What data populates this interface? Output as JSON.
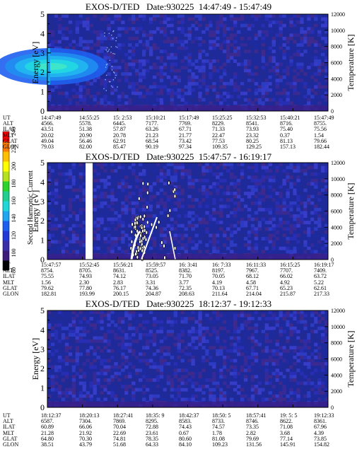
{
  "colors": {
    "background_field": "#1e2a9a",
    "low": "#3b1f8a",
    "colorbar": [
      "#000000",
      "#3b1c7a",
      "#3a2ea8",
      "#2438d8",
      "#1f5ff0",
      "#1fa6f0",
      "#21d8d8",
      "#21d090",
      "#2ad42a",
      "#b5e21c",
      "#ffff00",
      "#ffc000",
      "#ff7a00",
      "#ff0000"
    ]
  },
  "colorbar": {
    "title": "Second Harmonic Current",
    "ticks": [
      "80",
      "100",
      "120",
      "140",
      "160",
      "180",
      "200",
      "220",
      "240"
    ]
  },
  "table_row_labels": [
    "UT",
    "ALT",
    "ILAT",
    "MLT",
    "GLAT",
    "GLON"
  ],
  "chart_data": [
    {
      "type": "heatmap",
      "title": "EXOS-D/TED   Date:930225  14:47:49 - 15:47:49",
      "ylabel": "Energy [eV]",
      "y2label": "Temperature [K]",
      "yticks": [
        "0",
        "1",
        "2",
        "3",
        "4",
        "5"
      ],
      "ylim": [
        0,
        5
      ],
      "y2ticks": [
        "0",
        "2000",
        "4000",
        "6000",
        "8000",
        "10000",
        "12000"
      ],
      "y2lim": [
        0,
        12000
      ],
      "features": "bright cyan/green enhancement between about 1.5 and 3 eV during the first part of the interval",
      "table": [
        [
          "14:47:49",
          "14:55:25",
          "15: 2:53",
          "15:10:21",
          "15:17:49",
          "15:25:25",
          "15:32:53",
          "15:40:21",
          "15:47:49"
        ],
        [
          "4566.",
          "5578.",
          "6445.",
          "7177.",
          "7769.",
          "8229.",
          "8541.",
          "8716.",
          "8755."
        ],
        [
          "43.51",
          "51.38",
          "57.87",
          "63.26",
          "67.71",
          "71.33",
          "73.93",
          "75.40",
          "75.56"
        ],
        [
          "20.02",
          "20.90",
          "20.78",
          "21.23",
          "21.77",
          "22.47",
          "23.32",
          "0.37",
          "1.54"
        ],
        [
          "49.04",
          "56.46",
          "62.91",
          "68.54",
          "73.42",
          "77.53",
          "80.25",
          "81.13",
          "79.66"
        ],
        [
          "79.03",
          "82.00",
          "85.47",
          "90.19",
          "97.34",
          "109.35",
          "129.25",
          "157.13",
          "182.44"
        ]
      ]
    },
    {
      "type": "heatmap",
      "title": "EXOS-D/TED   Date:930225  15:47:57 - 16:19:17",
      "ylabel": "Energy [eV]",
      "y2label": "Temperature [K]",
      "yticks": [
        "0",
        "1",
        "2",
        "3",
        "4",
        "5"
      ],
      "ylim": [
        0,
        5
      ],
      "y2ticks": [
        "0",
        "2000",
        "4000",
        "6000",
        "8000",
        "10000",
        "12000"
      ],
      "y2lim": [
        0,
        12000
      ],
      "features": "data gap near 15:52; scattered white saturated points between 15:56 and 16:03",
      "table": [
        [
          "15:47:57",
          "15:52:45",
          "15:56:21",
          "15:59:57",
          "16: 3:41",
          "16: 7:33",
          "16:11:33",
          "16:15:25",
          "16:19:17"
        ],
        [
          "8754.",
          "8705.",
          "8631.",
          "8525.",
          "8382.",
          "8197.",
          "7967.",
          "7707.",
          "7409."
        ],
        [
          "75.55",
          "74.93",
          "74.12",
          "73.05",
          "71.70",
          "70.05",
          "68.12",
          "66.02",
          "63.72"
        ],
        [
          "1.56",
          "2.30",
          "2.83",
          "3.31",
          "3.77",
          "4.19",
          "4.58",
          "4.92",
          "5.22"
        ],
        [
          "79.62",
          "77.80",
          "76.17",
          "74.36",
          "72.35",
          "70.13",
          "67.71",
          "65.23",
          "62.61"
        ],
        [
          "182.81",
          "193.99",
          "200.15",
          "204.87",
          "208.63",
          "211.64",
          "214.04",
          "215.87",
          "217.33"
        ]
      ]
    },
    {
      "type": "heatmap",
      "title": "EXOS-D/TED   Date:930225  18:12:37 - 19:12:33",
      "ylabel": "Energy [eV]",
      "y2label": "Temperature [K]",
      "yticks": [
        "0",
        "1",
        "2",
        "3",
        "4",
        "5"
      ],
      "ylim": [
        0,
        5
      ],
      "y2ticks": [
        "0",
        "2000",
        "4000",
        "6000",
        "8000",
        "10000",
        "12000"
      ],
      "y2lim": [
        0,
        12000
      ],
      "features": "uniform low-level background",
      "table": [
        [
          "18:12:37",
          "18:20:13",
          "18:27:41",
          "18:35: 9",
          "18:42:37",
          "18:50: 5",
          "18:57:41",
          "19: 5: 5",
          "19:12:33"
        ],
        [
          "6587.",
          "7304.",
          "7869.",
          "8295.",
          "8583.",
          "8733.",
          "8746.",
          "8622.",
          "8361."
        ],
        [
          "60.89",
          "66.06",
          "70.04",
          "72.88",
          "74.43",
          "74.57",
          "73.35",
          "71.08",
          "67.96"
        ],
        [
          "21.28",
          "21.92",
          "22.69",
          "23.61",
          "0.67",
          "1.78",
          "2.82",
          "3.68",
          "4.39"
        ],
        [
          "64.80",
          "70.30",
          "74.81",
          "78.35",
          "80.60",
          "81.08",
          "79.69",
          "77.14",
          "73.85"
        ],
        [
          "38.51",
          "43.79",
          "51.68",
          "64.33",
          "84.10",
          "109.23",
          "131.56",
          "145.91",
          "154.82"
        ]
      ]
    }
  ]
}
